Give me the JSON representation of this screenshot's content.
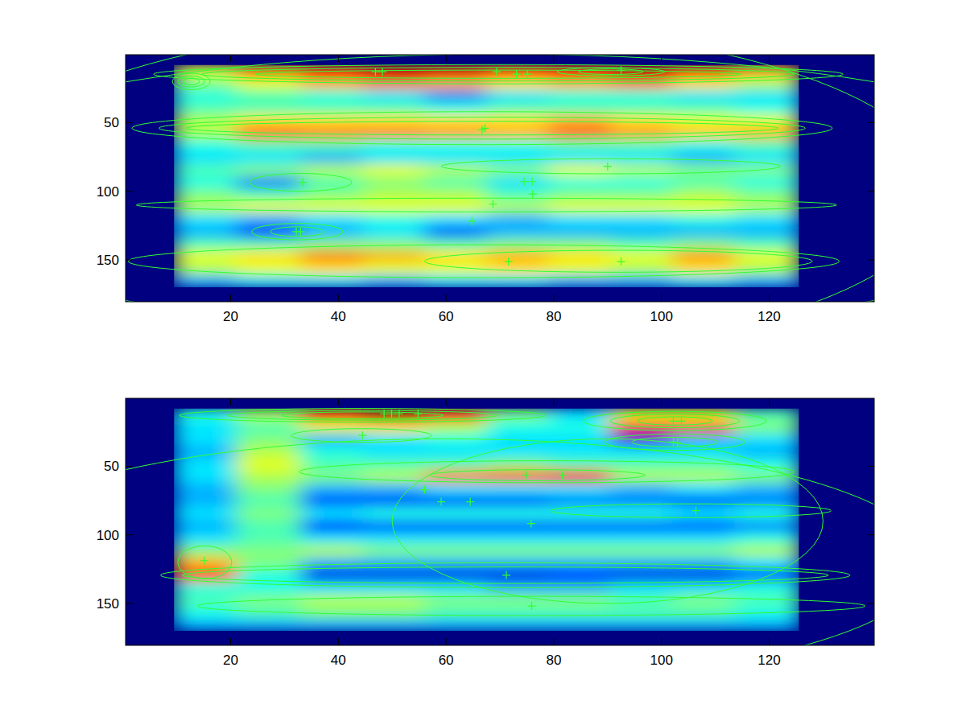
{
  "chart_data": [
    {
      "type": "heatmap",
      "color": "#33ff33",
      "marker": "plus",
      "tick_labels": true,
      "xlim": [
        0.5,
        139.5
      ],
      "ylim": [
        180.5,
        0.5
      ],
      "xticks": [
        20,
        40,
        60,
        80,
        100,
        120
      ],
      "yticks": [
        50,
        100,
        150
      ],
      "clim": [
        0,
        1
      ],
      "x_edges": [
        9.5,
        21,
        33,
        44.5,
        56,
        67.5,
        79,
        90.5,
        102,
        113.5,
        125.5
      ],
      "y_edges": [
        8,
        17,
        26,
        35,
        44,
        53,
        62,
        71,
        80,
        89,
        98,
        107,
        116,
        125,
        134,
        143,
        152,
        161,
        170
      ],
      "z": [
        [
          0.6,
          0.75,
          0.85,
          0.92,
          0.9,
          0.8,
          0.85,
          0.92,
          0.8,
          0.7
        ],
        [
          0.5,
          0.6,
          0.7,
          0.75,
          0.7,
          0.65,
          0.7,
          0.75,
          0.65,
          0.55
        ],
        [
          0.4,
          0.45,
          0.4,
          0.35,
          0.25,
          0.35,
          0.4,
          0.4,
          0.35,
          0.35
        ],
        [
          0.45,
          0.45,
          0.45,
          0.45,
          0.4,
          0.45,
          0.45,
          0.45,
          0.45,
          0.4
        ],
        [
          0.55,
          0.65,
          0.65,
          0.65,
          0.65,
          0.65,
          0.7,
          0.65,
          0.6,
          0.6
        ],
        [
          0.55,
          0.78,
          0.75,
          0.75,
          0.72,
          0.7,
          0.78,
          0.72,
          0.68,
          0.7
        ],
        [
          0.4,
          0.45,
          0.45,
          0.4,
          0.4,
          0.4,
          0.45,
          0.45,
          0.4,
          0.45
        ],
        [
          0.35,
          0.35,
          0.3,
          0.35,
          0.35,
          0.35,
          0.35,
          0.35,
          0.3,
          0.35
        ],
        [
          0.45,
          0.5,
          0.55,
          0.6,
          0.55,
          0.5,
          0.6,
          0.55,
          0.5,
          0.5
        ],
        [
          0.4,
          0.25,
          0.45,
          0.5,
          0.45,
          0.35,
          0.4,
          0.4,
          0.45,
          0.4
        ],
        [
          0.5,
          0.45,
          0.5,
          0.55,
          0.55,
          0.45,
          0.5,
          0.5,
          0.55,
          0.5
        ],
        [
          0.55,
          0.6,
          0.6,
          0.6,
          0.6,
          0.55,
          0.6,
          0.6,
          0.6,
          0.55
        ],
        [
          0.35,
          0.3,
          0.35,
          0.4,
          0.35,
          0.3,
          0.35,
          0.35,
          0.4,
          0.35
        ],
        [
          0.3,
          0.15,
          0.3,
          0.35,
          0.2,
          0.3,
          0.3,
          0.3,
          0.3,
          0.3
        ],
        [
          0.45,
          0.45,
          0.5,
          0.5,
          0.45,
          0.5,
          0.5,
          0.45,
          0.5,
          0.45
        ],
        [
          0.6,
          0.65,
          0.75,
          0.7,
          0.65,
          0.7,
          0.65,
          0.6,
          0.72,
          0.6
        ],
        [
          0.55,
          0.6,
          0.65,
          0.6,
          0.6,
          0.65,
          0.6,
          0.55,
          0.65,
          0.55
        ],
        [
          0.3,
          0.35,
          0.35,
          0.3,
          0.35,
          0.35,
          0.3,
          0.3,
          0.35,
          0.3
        ]
      ],
      "points": {
        "x": [
          46.9,
          48.2,
          69.4,
          73.1,
          75.1,
          92.5,
          67.2,
          66.7,
          33.4,
          90,
          74.5,
          76,
          76.1,
          68.7,
          64.8,
          32.2,
          33,
          71.6,
          92.5
        ],
        "y": [
          12.9,
          12.9,
          12.9,
          14.7,
          14.7,
          11.8,
          54.1,
          55.3,
          93.5,
          81.8,
          93,
          93,
          102,
          109.4,
          121.8,
          129.4,
          129.4,
          151.2,
          151.2
        ]
      },
      "contours": [
        {
          "cx": 69.7,
          "cy": 14.7,
          "rx": 64,
          "ry": 7
        },
        {
          "cx": 69.7,
          "cy": 14.7,
          "rx": 55,
          "ry": 5
        },
        {
          "cx": 69.7,
          "cy": 14.7,
          "rx": 45,
          "ry": 3
        },
        {
          "cx": 12.7,
          "cy": 20,
          "rx": 3.5,
          "ry": 6
        },
        {
          "cx": 12.7,
          "cy": 20,
          "rx": 2.5,
          "ry": 4
        },
        {
          "cx": 12.7,
          "cy": 20,
          "rx": 1.5,
          "ry": 2.5
        },
        {
          "cx": 90.6,
          "cy": 12.9,
          "rx": 10,
          "ry": 3
        },
        {
          "cx": 90.6,
          "cy": 12.9,
          "rx": 6,
          "ry": 2
        },
        {
          "cx": 66.7,
          "cy": 54,
          "rx": 65,
          "ry": 12
        },
        {
          "cx": 66.7,
          "cy": 54,
          "rx": 60,
          "ry": 8
        },
        {
          "cx": 66.7,
          "cy": 54,
          "rx": 55,
          "ry": 5
        },
        {
          "cx": 33,
          "cy": 93.5,
          "rx": 9.5,
          "ry": 6.5
        },
        {
          "cx": 90.6,
          "cy": 81.8,
          "rx": 31.5,
          "ry": 5.5
        },
        {
          "cx": 67.5,
          "cy": 110,
          "rx": 65,
          "ry": 5
        },
        {
          "cx": 32.4,
          "cy": 129.4,
          "rx": 8.5,
          "ry": 6
        },
        {
          "cx": 32.4,
          "cy": 129.4,
          "rx": 5,
          "ry": 3.5
        },
        {
          "cx": 92,
          "cy": 151,
          "rx": 36,
          "ry": 8
        },
        {
          "cx": 67,
          "cy": 151,
          "rx": 66,
          "ry": 12
        },
        {
          "cx": 62,
          "cy": 100,
          "rx": 90,
          "ry": 120
        },
        {
          "cx": 70,
          "cy": 100,
          "rx": 115,
          "ry": 100
        }
      ]
    },
    {
      "type": "heatmap",
      "color": "#33ff33",
      "marker": "plus",
      "tick_labels": true,
      "xlim": [
        0.5,
        139.5
      ],
      "ylim": [
        180.5,
        0.5
      ],
      "xticks": [
        20,
        40,
        60,
        80,
        100,
        120
      ],
      "yticks": [
        50,
        100,
        150
      ],
      "clim": [
        0,
        1
      ],
      "x_edges": [
        9.5,
        21,
        33,
        44.5,
        56,
        67.5,
        79,
        90.5,
        102,
        113.5,
        125.5
      ],
      "y_edges": [
        8,
        17,
        26,
        35,
        44,
        53,
        62,
        71,
        80,
        89,
        98,
        107,
        116,
        125,
        134,
        143,
        152,
        161,
        170
      ],
      "z": [
        [
          0.4,
          0.55,
          0.85,
          0.95,
          0.85,
          0.5,
          0.35,
          0.6,
          0.6,
          0.45
        ],
        [
          0.35,
          0.45,
          0.6,
          0.65,
          0.55,
          0.4,
          0.4,
          0.85,
          0.8,
          0.5
        ],
        [
          0.35,
          0.5,
          0.3,
          0.35,
          0.4,
          0.35,
          0.35,
          0.1,
          0.3,
          0.35
        ],
        [
          0.3,
          0.55,
          0.4,
          0.35,
          0.35,
          0.35,
          0.35,
          0.35,
          0.35,
          0.3
        ],
        [
          0.35,
          0.6,
          0.45,
          0.45,
          0.45,
          0.5,
          0.45,
          0.45,
          0.45,
          0.4
        ],
        [
          0.35,
          0.55,
          0.5,
          0.55,
          0.75,
          0.78,
          0.85,
          0.55,
          0.55,
          0.5
        ],
        [
          0.3,
          0.5,
          0.3,
          0.3,
          0.35,
          0.35,
          0.35,
          0.3,
          0.35,
          0.3
        ],
        [
          0.3,
          0.45,
          0.2,
          0.2,
          0.2,
          0.2,
          0.25,
          0.25,
          0.2,
          0.25
        ],
        [
          0.35,
          0.5,
          0.35,
          0.4,
          0.4,
          0.4,
          0.4,
          0.4,
          0.35,
          0.4
        ],
        [
          0.3,
          0.45,
          0.15,
          0.2,
          0.2,
          0.2,
          0.2,
          0.2,
          0.2,
          0.25
        ],
        [
          0.35,
          0.45,
          0.35,
          0.35,
          0.35,
          0.35,
          0.35,
          0.35,
          0.35,
          0.4
        ],
        [
          0.5,
          0.5,
          0.55,
          0.5,
          0.5,
          0.5,
          0.5,
          0.5,
          0.5,
          0.55
        ],
        [
          0.7,
          0.5,
          0.3,
          0.3,
          0.3,
          0.3,
          0.3,
          0.3,
          0.3,
          0.35
        ],
        [
          0.8,
          0.4,
          0.1,
          0.1,
          0.1,
          0.1,
          0.15,
          0.1,
          0.1,
          0.2
        ],
        [
          0.4,
          0.4,
          0.35,
          0.35,
          0.35,
          0.3,
          0.3,
          0.35,
          0.35,
          0.4
        ],
        [
          0.45,
          0.5,
          0.55,
          0.55,
          0.5,
          0.5,
          0.5,
          0.45,
          0.5,
          0.45
        ],
        [
          0.4,
          0.45,
          0.5,
          0.5,
          0.45,
          0.45,
          0.45,
          0.45,
          0.45,
          0.4
        ],
        [
          0.3,
          0.3,
          0.3,
          0.3,
          0.3,
          0.3,
          0.3,
          0.3,
          0.3,
          0.3
        ]
      ],
      "points": {
        "x": [
          48.5,
          49.9,
          51.3,
          54.8,
          44.5,
          102.2,
          103.7,
          102.2,
          103,
          74.9,
          81.6,
          56,
          59.1,
          64.5,
          75.8,
          106.4,
          15.1,
          71.2,
          75.9
        ],
        "y": [
          11.8,
          11.8,
          11.8,
          11.8,
          27.6,
          17.1,
          17.1,
          32.4,
          32.9,
          56.5,
          56.5,
          67.1,
          75.9,
          75.9,
          91.8,
          82.4,
          118.8,
          129.4,
          151.8
        ]
      },
      "contours": [
        {
          "cx": 44.5,
          "cy": 12.9,
          "rx": 34,
          "ry": 5
        },
        {
          "cx": 44.5,
          "cy": 12.9,
          "rx": 25,
          "ry": 3.5
        },
        {
          "cx": 44.5,
          "cy": 12.9,
          "rx": 15,
          "ry": 2.5
        },
        {
          "cx": 44.3,
          "cy": 27.6,
          "rx": 13,
          "ry": 5
        },
        {
          "cx": 102.5,
          "cy": 17,
          "rx": 17,
          "ry": 7
        },
        {
          "cx": 102.5,
          "cy": 17,
          "rx": 12,
          "ry": 5
        },
        {
          "cx": 102.5,
          "cy": 17,
          "rx": 7,
          "ry": 3
        },
        {
          "cx": 102.5,
          "cy": 32.4,
          "rx": 13,
          "ry": 6
        },
        {
          "cx": 102.5,
          "cy": 32.4,
          "rx": 8,
          "ry": 3.5
        },
        {
          "cx": 78.7,
          "cy": 54,
          "rx": 46,
          "ry": 8
        },
        {
          "cx": 77,
          "cy": 56.5,
          "rx": 20,
          "ry": 4
        },
        {
          "cx": 105.5,
          "cy": 82.4,
          "rx": 26,
          "ry": 5
        },
        {
          "cx": 90,
          "cy": 90,
          "rx": 40,
          "ry": 60
        },
        {
          "cx": 15.2,
          "cy": 120,
          "rx": 5,
          "ry": 12
        },
        {
          "cx": 71,
          "cy": 129.4,
          "rx": 64,
          "ry": 9
        },
        {
          "cx": 71,
          "cy": 129.4,
          "rx": 60,
          "ry": 6
        },
        {
          "cx": 75.8,
          "cy": 151.8,
          "rx": 62,
          "ry": 7
        },
        {
          "cx": 60,
          "cy": 120,
          "rx": 90,
          "ry": 90
        }
      ]
    }
  ]
}
